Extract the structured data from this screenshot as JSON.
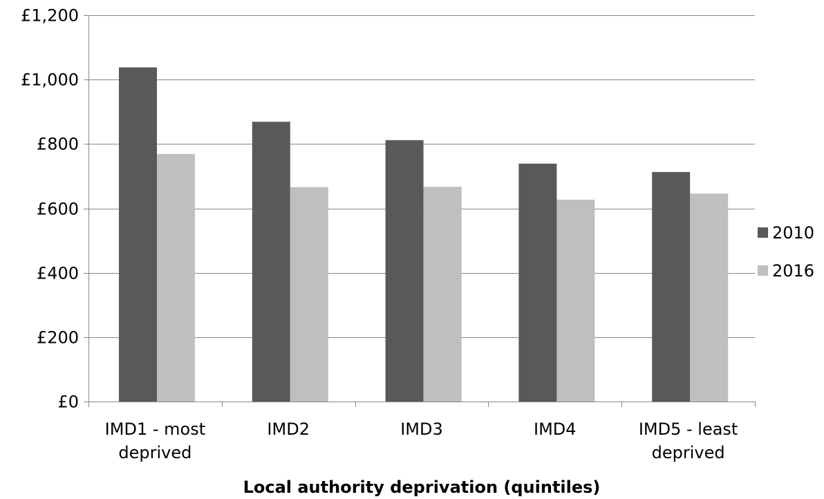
{
  "chart_data": {
    "type": "bar",
    "categories": [
      [
        "IMD1 - most",
        "deprived"
      ],
      [
        "IMD2"
      ],
      [
        "IMD3"
      ],
      [
        "IMD4"
      ],
      [
        "IMD5 - least",
        "deprived"
      ]
    ],
    "series": [
      {
        "name": "2010",
        "color": "#595959",
        "values": [
          1038,
          869,
          812,
          739,
          713
        ]
      },
      {
        "name": "2016",
        "color": "#bfbfbf",
        "values": [
          769,
          666,
          667,
          627,
          646
        ]
      }
    ],
    "yticks": [
      "£0",
      "£200",
      "£400",
      "£600",
      "£800",
      "£1,000",
      "£1,200"
    ],
    "ytick_values": [
      0,
      200,
      400,
      600,
      800,
      1000,
      1200
    ],
    "ylim": [
      0,
      1200
    ],
    "xlabel": "Local authority deprivation (quintiles)",
    "ylabel": "",
    "title": "",
    "grid": true,
    "legend_position": "right"
  }
}
